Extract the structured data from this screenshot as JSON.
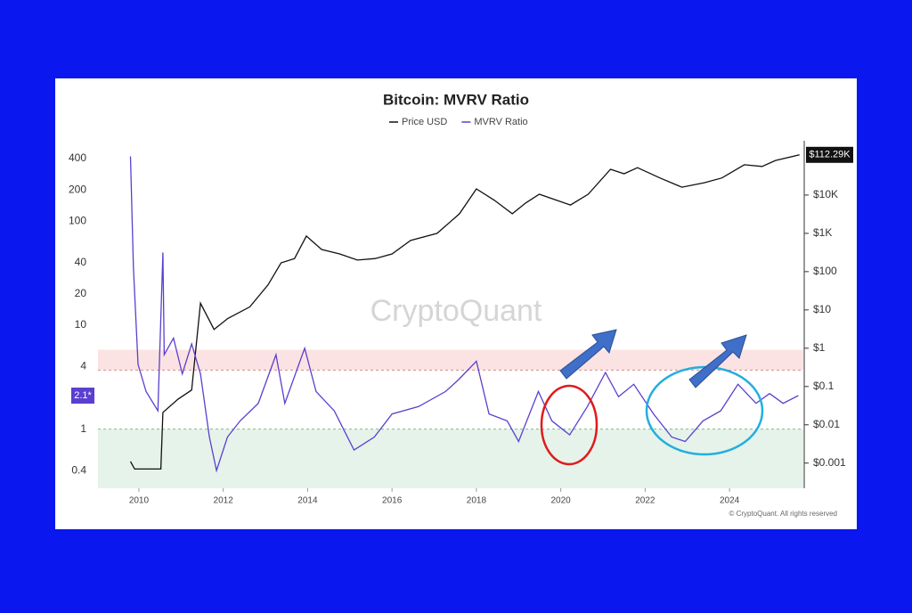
{
  "chart_data": {
    "type": "line",
    "title": "Bitcoin: MVRV Ratio",
    "watermark": "CryptoQuant",
    "footer": "© CryptoQuant. All rights reserved",
    "xlim": [
      2009.03,
      2025.75
    ],
    "xticks": [
      2010,
      2012,
      2014,
      2016,
      2018,
      2020,
      2022,
      2024
    ],
    "ylim": [
      0.27,
      570
    ],
    "yticks": [
      0.4,
      1,
      4,
      10,
      20,
      40,
      100,
      200,
      400
    ],
    "y_log": true,
    "y2lim": [
      0.00022,
      235000
    ],
    "y2_log": true,
    "y2ticks": [
      {
        "value": 0.001,
        "label": "$0.001"
      },
      {
        "value": 0.01,
        "label": "$0.01"
      },
      {
        "value": 0.1,
        "label": "$0.1"
      },
      {
        "value": 1,
        "label": "$1"
      },
      {
        "value": 10,
        "label": "$10"
      },
      {
        "value": 100,
        "label": "$100"
      },
      {
        "value": 1000,
        "label": "$1K"
      },
      {
        "value": 10000,
        "label": "$10K"
      }
    ],
    "grid": false,
    "zones": [
      {
        "from": 3.7,
        "to": 5.8,
        "color": "#fbe3e3",
        "line": "#d98a8a"
      },
      {
        "from": 0.27,
        "to": 1,
        "color": "#e6f3ea",
        "line": "#7cbf8a"
      }
    ],
    "annotations": [
      {
        "text": "$112.29K",
        "value": 112290,
        "axis": "y2",
        "color": "#111111"
      },
      {
        "text": "2.1*",
        "value": 2.1,
        "axis": "y",
        "color": "#5a3fd0"
      }
    ],
    "series": [
      {
        "name": "Price USD",
        "color": "#111111",
        "axis": "y2",
        "x": [
          2009.8,
          2009.9,
          2010.52,
          2010.57,
          2010.93,
          2011.25,
          2011.46,
          2011.78,
          2012.1,
          2012.63,
          2013.06,
          2013.37,
          2013.69,
          2013.97,
          2014.33,
          2014.76,
          2015.18,
          2015.6,
          2016.0,
          2016.44,
          2017.07,
          2017.6,
          2018.0,
          2018.43,
          2018.85,
          2019.17,
          2019.49,
          2019.91,
          2020.23,
          2020.65,
          2021.18,
          2021.5,
          2021.82,
          2022.35,
          2022.87,
          2023.4,
          2023.82,
          2024.35,
          2024.77,
          2025.09,
          2025.66
        ],
        "values": [
          0.0011,
          0.0007,
          0.0007,
          0.021,
          0.047,
          0.081,
          15,
          3.1,
          5.9,
          12,
          45,
          170,
          220,
          850,
          380,
          290,
          200,
          220,
          290,
          650,
          1000,
          3250,
          14500,
          7250,
          3250,
          6200,
          10500,
          7250,
          5500,
          10500,
          47000,
          36000,
          52000,
          28000,
          16000,
          21000,
          28000,
          62000,
          56000,
          80000,
          112290
        ]
      },
      {
        "name": "MVRV Ratio",
        "color": "#5a3fd0",
        "axis": "y",
        "x": [
          2009.8,
          2009.87,
          2009.98,
          2010.17,
          2010.45,
          2010.57,
          2010.6,
          2010.82,
          2011.03,
          2011.25,
          2011.46,
          2011.67,
          2011.84,
          2012.1,
          2012.4,
          2012.83,
          2013.25,
          2013.46,
          2013.93,
          2014.2,
          2014.63,
          2015.1,
          2015.58,
          2016.0,
          2016.63,
          2017.27,
          2017.58,
          2018.0,
          2018.3,
          2018.73,
          2019.0,
          2019.47,
          2019.79,
          2020.21,
          2020.63,
          2021.06,
          2021.37,
          2021.73,
          2022.2,
          2022.63,
          2022.95,
          2023.37,
          2023.79,
          2024.2,
          2024.63,
          2024.95,
          2025.27,
          2025.63
        ],
        "values": [
          420,
          36,
          4.2,
          2.3,
          1.5,
          50,
          5.2,
          7.5,
          3.4,
          6.6,
          3.4,
          0.84,
          0.4,
          0.84,
          1.2,
          1.77,
          5.2,
          1.77,
          6.0,
          2.3,
          1.5,
          0.63,
          0.84,
          1.4,
          1.65,
          2.3,
          3.0,
          4.5,
          1.4,
          1.2,
          0.76,
          2.3,
          1.2,
          0.88,
          1.65,
          3.5,
          2.05,
          2.7,
          1.4,
          0.84,
          0.76,
          1.2,
          1.5,
          2.7,
          1.77,
          2.2,
          1.77,
          2.1
        ]
      }
    ]
  }
}
